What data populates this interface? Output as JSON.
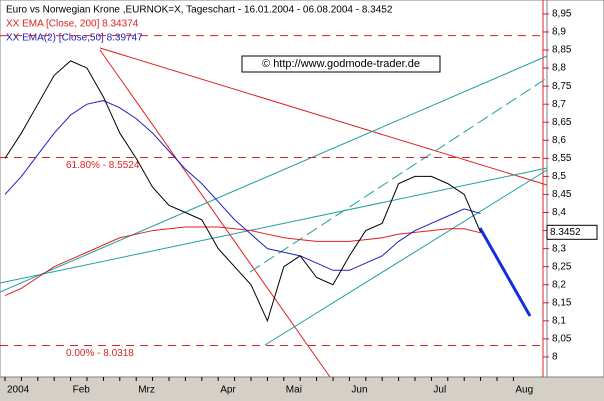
{
  "chart_data": {
    "type": "line",
    "title": "Euro vs Norwegian Krone ,EURNOK=X, Tageschart - 16.01.2004 - 06.08.2004 - 8.3452",
    "watermark": "© http://www.godmode-trader.de",
    "categories": [
      "2004",
      null,
      null,
      null,
      "Feb",
      null,
      null,
      null,
      "Mrz",
      null,
      null,
      null,
      null,
      "Apr",
      null,
      null,
      null,
      "Mai",
      null,
      null,
      null,
      "Jun",
      null,
      null,
      null,
      null,
      "Jul",
      null,
      null,
      null,
      null,
      "Aug"
    ],
    "series": [
      {
        "name": "XX EMA [Close, 200] 8.34374",
        "color": "#e02020",
        "values": [
          8.17,
          8.19,
          8.22,
          8.25,
          8.27,
          8.29,
          8.31,
          8.33,
          8.34,
          8.35,
          8.355,
          8.36,
          8.36,
          8.36,
          8.355,
          8.35,
          8.34,
          8.33,
          8.325,
          8.32,
          8.32,
          8.32,
          8.325,
          8.33,
          8.34,
          8.345,
          8.35,
          8.355,
          8.355,
          8.34374,
          null,
          null
        ]
      },
      {
        "name": "XX EMA(2) [Close,50] 8.39747",
        "color": "#2020c0",
        "values": [
          8.45,
          8.5,
          8.56,
          8.62,
          8.67,
          8.7,
          8.71,
          8.69,
          8.66,
          8.62,
          8.57,
          8.52,
          8.48,
          8.43,
          8.38,
          8.34,
          8.3,
          8.29,
          8.28,
          8.26,
          8.24,
          8.24,
          8.26,
          8.28,
          8.32,
          8.35,
          8.37,
          8.39,
          8.41,
          8.39747,
          null,
          null
        ]
      },
      {
        "color": "#000000",
        "values": [
          8.55,
          8.62,
          8.7,
          8.78,
          8.82,
          8.8,
          8.72,
          8.62,
          8.55,
          8.47,
          8.42,
          8.4,
          8.38,
          8.3,
          8.25,
          8.2,
          8.1,
          8.25,
          8.28,
          8.22,
          8.2,
          8.28,
          8.35,
          8.37,
          8.48,
          8.5,
          8.5,
          8.48,
          8.45,
          8.3452,
          null,
          null
        ]
      }
    ],
    "levels": [
      {
        "value": 8.89
      },
      {
        "value": 8.5524,
        "label": "61.80% - 8.5524"
      },
      {
        "value": 8.0318,
        "label": "0.00% - 8.0318"
      }
    ],
    "last_price": 8.3452,
    "ylim": [
      7.95,
      8.983
    ],
    "yticks": [
      {
        "value": 8.0,
        "label": "8"
      },
      {
        "value": 8.05,
        "label": "8,05"
      },
      {
        "value": 8.1,
        "label": "8,1"
      },
      {
        "value": 8.15,
        "label": "8,15"
      },
      {
        "value": 8.2,
        "label": "8,2"
      },
      {
        "value": 8.25,
        "label": "8,25"
      },
      {
        "value": 8.3,
        "label": "8,3"
      },
      {
        "value": 8.35,
        "label": "8,35"
      },
      {
        "value": 8.4,
        "label": "8,4"
      },
      {
        "value": 8.45,
        "label": "8,45"
      },
      {
        "value": 8.5,
        "label": "8,5"
      },
      {
        "value": 8.55,
        "label": "8,55"
      },
      {
        "value": 8.6,
        "label": "8,6"
      },
      {
        "value": 8.65,
        "label": "8,65"
      },
      {
        "value": 8.7,
        "label": "8,7"
      },
      {
        "value": 8.75,
        "label": "8,75"
      },
      {
        "value": 8.8,
        "label": "8,8"
      },
      {
        "value": 8.85,
        "label": "8,85"
      },
      {
        "value": 8.9,
        "label": "8,9"
      },
      {
        "value": 8.95,
        "label": "8,95"
      }
    ]
  }
}
